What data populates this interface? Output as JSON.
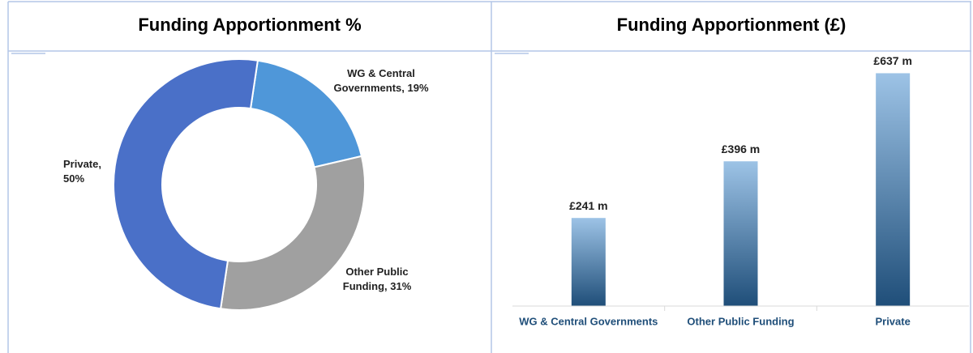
{
  "chart_data": [
    {
      "type": "pie",
      "title": "Funding Apportionment %",
      "categories": [
        "WG & Central Governments",
        "Other Public Funding",
        "Private"
      ],
      "values": [
        19,
        31,
        50
      ],
      "value_labels": [
        "WG & Central Governments, 19%",
        "Other Public Funding, 31%",
        "Private, 50%"
      ],
      "colors": [
        "#4f97d9",
        "#a0a0a0",
        "#4a70c8"
      ]
    },
    {
      "type": "bar",
      "title": "Funding Apportionment (£)",
      "categories": [
        "WG & Central Governments",
        "Other Public Funding",
        "Private"
      ],
      "values": [
        241,
        396,
        637
      ],
      "value_labels": [
        "£241 m",
        "£396 m",
        "£637 m"
      ],
      "ylim": [
        0,
        700
      ],
      "color": "#1f4e79"
    }
  ]
}
